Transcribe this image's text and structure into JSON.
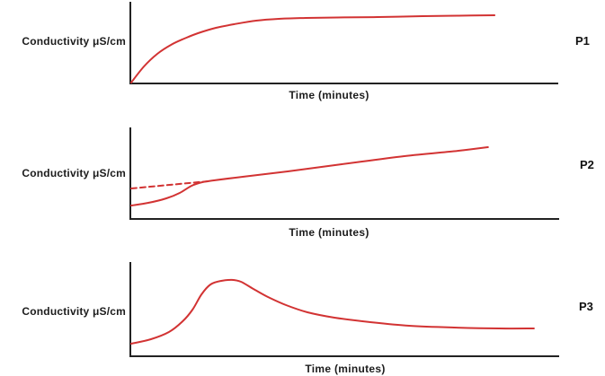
{
  "colors": {
    "curve_red": "#d23333",
    "axis": "#222222",
    "text": "#1c1c1c",
    "background": "#ffffff"
  },
  "chart_data": [
    {
      "panel_label": "P1",
      "type": "line",
      "title": "",
      "xlabel": "Time (minutes)",
      "ylabel": "Conductivity μS/cm",
      "axes": {
        "x_ticks": "none",
        "y_ticks": "none",
        "grid": false,
        "value_units": "relative fraction of axis (axes unlabeled)"
      },
      "shape": "saturation curve: rapid rise from origin then plateau",
      "series": [
        {
          "name": "conductivity",
          "style": "solid",
          "x_frac": [
            0.002,
            0.032,
            0.063,
            0.095,
            0.126,
            0.158,
            0.2,
            0.242,
            0.294,
            0.347,
            0.41,
            0.483,
            0.578,
            0.683,
            0.767,
            0.851
          ],
          "y_frac": [
            0.011,
            0.209,
            0.363,
            0.473,
            0.549,
            0.615,
            0.681,
            0.725,
            0.769,
            0.791,
            0.802,
            0.808,
            0.813,
            0.824,
            0.83,
            0.835
          ]
        }
      ]
    },
    {
      "panel_label": "P2",
      "type": "line",
      "title": "",
      "xlabel": "Time (minutes)",
      "ylabel": "Conductivity μS/cm",
      "axes": {
        "x_ticks": "none",
        "y_ticks": "none",
        "grid": false,
        "value_units": "relative fraction of axis (axes unlabeled)"
      },
      "shape": "slow start, sigmoid rise, then steady linear increase; dashed back-extrapolation line from y-axis to the inflection",
      "series": [
        {
          "name": "conductivity",
          "style": "solid",
          "x_frac": [
            0.002,
            0.042,
            0.084,
            0.115,
            0.143,
            0.168,
            0.195,
            0.262,
            0.367,
            0.493,
            0.639,
            0.765,
            0.834
          ],
          "y_frac": [
            0.147,
            0.176,
            0.225,
            0.284,
            0.363,
            0.402,
            0.422,
            0.461,
            0.52,
            0.598,
            0.686,
            0.745,
            0.784
          ]
        },
        {
          "name": "extrapolation",
          "style": "dashed",
          "x_frac": [
            0.002,
            0.182
          ],
          "y_frac": [
            0.333,
            0.412
          ]
        }
      ]
    },
    {
      "panel_label": "P3",
      "type": "line",
      "title": "",
      "xlabel": "Time (minutes)",
      "ylabel": "Conductivity μS/cm",
      "axes": {
        "x_ticks": "none",
        "y_ticks": "none",
        "grid": false,
        "value_units": "relative fraction of axis (axes unlabeled)"
      },
      "shape": "rise to a rounded peak then decay to a plateau above the start value",
      "series": [
        {
          "name": "conductivity",
          "style": "solid",
          "x_frac": [
            0.002,
            0.048,
            0.09,
            0.122,
            0.145,
            0.166,
            0.187,
            0.212,
            0.237,
            0.258,
            0.287,
            0.321,
            0.363,
            0.413,
            0.476,
            0.56,
            0.65,
            0.755,
            0.86,
            0.941
          ],
          "y_frac": [
            0.133,
            0.181,
            0.257,
            0.371,
            0.495,
            0.657,
            0.762,
            0.8,
            0.81,
            0.79,
            0.714,
            0.629,
            0.543,
            0.467,
            0.41,
            0.362,
            0.324,
            0.305,
            0.295,
            0.295
          ]
        }
      ]
    }
  ]
}
